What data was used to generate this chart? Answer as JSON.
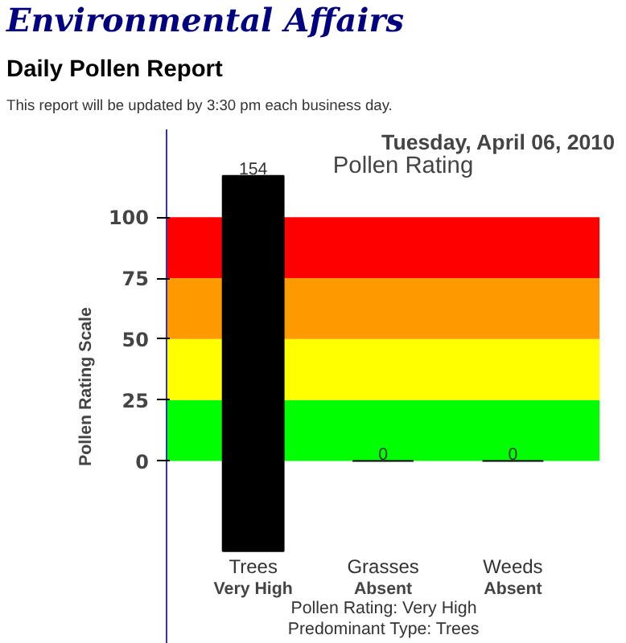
{
  "chart_data": {
    "type": "bar",
    "title": "Pollen Rating",
    "subtitle": "Tuesday, April 06, 2010",
    "ylabel": "Pollen Rating Scale",
    "categories": [
      "Trees",
      "Grasses",
      "Weeds"
    ],
    "values": [
      154,
      0,
      0
    ],
    "base": [
      -37,
      null,
      null
    ],
    "color": "#000000",
    "data_labels": true,
    "ylim": [
      -75,
      136
    ],
    "yticks": [
      0,
      25,
      50,
      75,
      100
    ],
    "grid": false,
    "legend": false,
    "bands": [
      {
        "axis": "y",
        "from": 0,
        "to": 25,
        "color": "#00ff00"
      },
      {
        "axis": "y",
        "from": 25,
        "to": 50,
        "color": "#ffff00"
      },
      {
        "axis": "y",
        "from": 50,
        "to": 75,
        "color": "#ff9900"
      },
      {
        "axis": "y",
        "from": 75,
        "to": 100,
        "color": "#ff0000"
      }
    ],
    "annotations": [
      "Environmental Affairs",
      "Daily Pollen Report",
      "This report will be updated by 3:30 pm each business day.",
      "Very High",
      "Absent",
      "Absent",
      "Pollen Rating: Very High",
      "Predominant Type: Trees"
    ]
  }
}
